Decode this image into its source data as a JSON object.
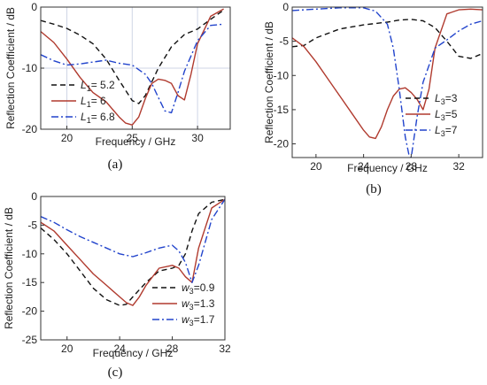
{
  "chart_data": [
    {
      "type": "line",
      "panel_label": "(a)",
      "xlabel": "Frequency / GHz",
      "ylabel": "Reflection Coefficient / dB",
      "xlim": [
        18,
        32.5
      ],
      "ylim": [
        -20,
        0
      ],
      "xticks": [
        "20",
        "25",
        "30"
      ],
      "yticks": [
        "0",
        "-10",
        "-20"
      ],
      "grid": true,
      "legend_position": "bottom-left",
      "series": [
        {
          "name": "L1= 5.2",
          "legend_base": "L",
          "legend_sub": "1",
          "legend_value": "= 5.2",
          "color": "#111111",
          "dash": "6,4",
          "x": [
            18,
            19,
            20,
            21,
            22,
            23,
            24,
            25,
            25.5,
            26,
            27,
            28,
            29,
            30,
            31,
            32
          ],
          "y": [
            -2.2,
            -2.8,
            -3.5,
            -4.6,
            -6,
            -8.5,
            -12,
            -15.3,
            -15.8,
            -14.5,
            -10,
            -6.5,
            -4.5,
            -3.6,
            -2,
            -0.5
          ]
        },
        {
          "name": "L1= 6",
          "legend_base": "L",
          "legend_sub": "1",
          "legend_value": "= 6",
          "color": "#b03a2e",
          "dash": "",
          "x": [
            18,
            19,
            20,
            21,
            22,
            23,
            24,
            24.5,
            25,
            25.5,
            26,
            26.5,
            27,
            27.5,
            28,
            28.5,
            29,
            29.5,
            30,
            31,
            32
          ],
          "y": [
            -4,
            -5.8,
            -8.5,
            -11.5,
            -14,
            -15.5,
            -18,
            -19,
            -19.3,
            -18,
            -15,
            -12.5,
            -11.8,
            -12,
            -12.5,
            -14.5,
            -15.2,
            -11,
            -6,
            -1.5,
            -0.3
          ]
        },
        {
          "name": "L1= 6.8",
          "legend_base": "L",
          "legend_sub": "1",
          "legend_value": "= 6.8",
          "color": "#2244cc",
          "dash": "8,3,2,3",
          "x": [
            18,
            19,
            20,
            21,
            22,
            23,
            24,
            25,
            26,
            26.5,
            27,
            27.5,
            28,
            28.5,
            29,
            30,
            31,
            32
          ],
          "y": [
            -7.8,
            -8.8,
            -9.5,
            -9.3,
            -9,
            -8.7,
            -9.2,
            -9.5,
            -11,
            -12.5,
            -14.8,
            -17,
            -17.3,
            -14,
            -10.5,
            -5.5,
            -3,
            -2.8
          ]
        }
      ]
    },
    {
      "type": "line",
      "panel_label": "(b)",
      "xlabel": "Frequency / GHz",
      "ylabel": "Reflection Coefficient / dB",
      "xlim": [
        18,
        34
      ],
      "ylim": [
        -22,
        0
      ],
      "xticks": [
        "20",
        "24",
        "28",
        "32"
      ],
      "yticks": [
        "0",
        "-5",
        "-10",
        "-15",
        "-20"
      ],
      "grid": false,
      "legend_position": "bottom-right",
      "series": [
        {
          "name": "L3=3",
          "legend_base": "L",
          "legend_sub": "3",
          "legend_value": "=3",
          "color": "#111111",
          "dash": "6,4",
          "x": [
            18,
            19,
            20,
            22,
            24,
            26,
            27,
            28,
            29,
            30,
            31,
            32,
            33,
            34
          ],
          "y": [
            -5.8,
            -5.6,
            -4.5,
            -3.2,
            -2.6,
            -2.2,
            -1.9,
            -1.8,
            -2,
            -3,
            -5,
            -7.2,
            -7.5,
            -6.8
          ]
        },
        {
          "name": "L3=5",
          "legend_base": "L",
          "legend_sub": "3",
          "legend_value": "=5",
          "color": "#b03a2e",
          "dash": "",
          "x": [
            18,
            19,
            20,
            21,
            22,
            23,
            24,
            24.5,
            25,
            25.5,
            26,
            26.5,
            27,
            27.5,
            28,
            28.5,
            29,
            29.5,
            30,
            31,
            32,
            33,
            34
          ],
          "y": [
            -4.5,
            -5.8,
            -8,
            -10.5,
            -13,
            -15.5,
            -18,
            -19,
            -19.2,
            -17.5,
            -15,
            -13,
            -12,
            -11.8,
            -12.5,
            -13.5,
            -15,
            -12,
            -6,
            -1,
            -0.4,
            -0.3,
            -0.4
          ]
        },
        {
          "name": "L3=7",
          "legend_base": "L",
          "legend_sub": "3",
          "legend_value": "=7",
          "color": "#2244cc",
          "dash": "8,3,2,3",
          "x": [
            18,
            20,
            22,
            24,
            25,
            26,
            26.5,
            27,
            27.5,
            27.8,
            28,
            28.5,
            29,
            30,
            31,
            32,
            33,
            34
          ],
          "y": [
            -0.5,
            -0.3,
            -0.1,
            -0.1,
            -0.6,
            -2.5,
            -6,
            -12,
            -19,
            -21.5,
            -22,
            -16,
            -11,
            -6,
            -4.8,
            -3.5,
            -2.5,
            -2
          ]
        }
      ]
    },
    {
      "type": "line",
      "panel_label": "(c)",
      "xlabel": "Frequency / GHz",
      "ylabel": "Reflection Coefficient / dB",
      "xlim": [
        18,
        32
      ],
      "ylim": [
        -25,
        0
      ],
      "xticks": [
        "20",
        "24",
        "28",
        "32"
      ],
      "yticks": [
        "0",
        "-5",
        "-10",
        "-15",
        "-20",
        "-25"
      ],
      "grid": false,
      "legend_position": "bottom-right",
      "series": [
        {
          "name": "w3=0.9",
          "legend_base": "w",
          "legend_sub": "3",
          "legend_value": "=0.9",
          "color": "#111111",
          "dash": "6,4",
          "x": [
            18,
            19,
            20,
            21,
            22,
            23,
            24,
            24.5,
            25,
            26,
            27,
            28,
            28.5,
            29,
            29.5,
            30,
            31,
            32
          ],
          "y": [
            -5.5,
            -7.5,
            -10,
            -13,
            -16,
            -18,
            -19,
            -18.8,
            -17.5,
            -15,
            -13,
            -12.5,
            -12,
            -10,
            -6,
            -3,
            -1,
            -0.5
          ]
        },
        {
          "name": "w3=1.3",
          "legend_base": "w",
          "legend_sub": "3",
          "legend_value": "=1.3",
          "color": "#b03a2e",
          "dash": "",
          "x": [
            18,
            19,
            20,
            21,
            22,
            23,
            24,
            24.5,
            25,
            25.5,
            26,
            27,
            28,
            28.5,
            29,
            29.5,
            30,
            31,
            32
          ],
          "y": [
            -4.5,
            -6,
            -8.5,
            -11,
            -13.5,
            -15.5,
            -17.5,
            -18.5,
            -19,
            -17.5,
            -15.5,
            -12.5,
            -12,
            -12.5,
            -14,
            -15,
            -9,
            -2,
            -0.5
          ]
        },
        {
          "name": "w3=1.7",
          "legend_base": "w",
          "legend_sub": "3",
          "legend_value": "=1.7",
          "color": "#2244cc",
          "dash": "8,3,2,3",
          "x": [
            18,
            19,
            20,
            21,
            22,
            23,
            24,
            25,
            26,
            27,
            28,
            28.5,
            29,
            29.5,
            30,
            31,
            32
          ],
          "y": [
            -3.5,
            -4.5,
            -5.8,
            -7,
            -8,
            -9,
            -10,
            -10.5,
            -9.8,
            -9,
            -8.5,
            -9.5,
            -11.5,
            -15,
            -12,
            -4,
            -0.5
          ]
        }
      ]
    }
  ]
}
